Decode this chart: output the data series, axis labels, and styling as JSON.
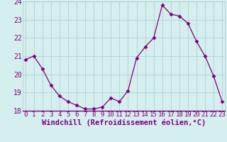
{
  "x": [
    0,
    1,
    2,
    3,
    4,
    5,
    6,
    7,
    8,
    9,
    10,
    11,
    12,
    13,
    14,
    15,
    16,
    17,
    18,
    19,
    20,
    21,
    22,
    23
  ],
  "y": [
    20.8,
    21.0,
    20.3,
    19.4,
    18.8,
    18.5,
    18.3,
    18.1,
    18.1,
    18.2,
    18.7,
    18.5,
    19.1,
    20.9,
    21.5,
    22.0,
    23.8,
    23.3,
    23.2,
    22.8,
    21.8,
    21.0,
    19.9,
    18.5
  ],
  "line_color": "#800080",
  "marker": "D",
  "marker_size": 2.5,
  "bg_color": "#d5eeee",
  "grid_color": "#aacccc",
  "xlabel": "Windchill (Refroidissement éolien,°C)",
  "xlabel_color": "#800080",
  "tick_color": "#800080",
  "ylim": [
    18,
    24
  ],
  "yticks": [
    18,
    19,
    20,
    21,
    22,
    23,
    24
  ],
  "xticks": [
    0,
    1,
    2,
    3,
    4,
    5,
    6,
    7,
    8,
    9,
    10,
    11,
    12,
    13,
    14,
    15,
    16,
    17,
    18,
    19,
    20,
    21,
    22,
    23
  ],
  "xlim": [
    -0.3,
    23.3
  ],
  "axis_line_color": "#800080",
  "xlabel_fontsize": 7.5,
  "tick_fontsize": 6.5
}
